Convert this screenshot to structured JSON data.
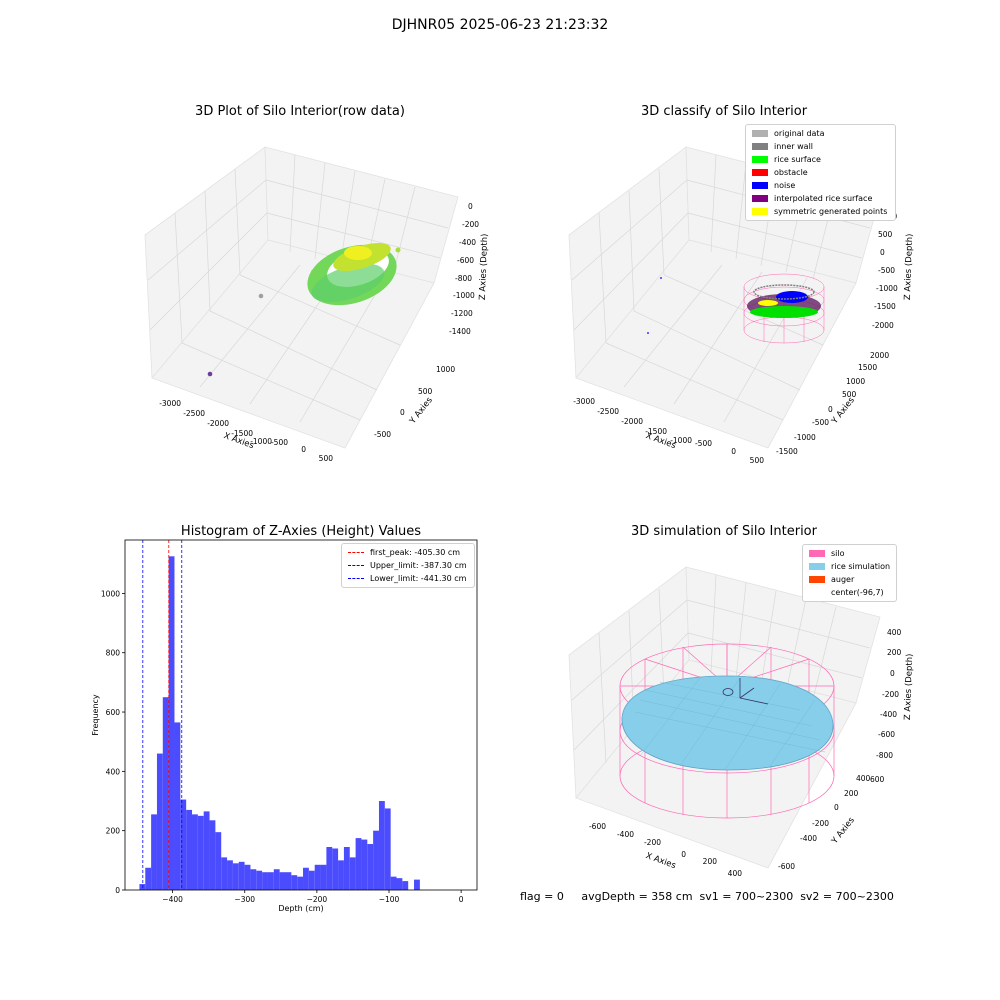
{
  "suptitle": "DJHNR05 2025-06-23 21:23:32",
  "bottom_text": "flag = 0     avgDepth = 358 cm  sv1 = 700~2300  sv2 = 700~2300",
  "colors": {
    "hist_bar": "#4c4cff",
    "first_peak": "#ff0000",
    "limits": "#0000ff",
    "silo_wire": "#ff69b4",
    "rice_sim": "#87ceeb"
  },
  "chart_data": [
    {
      "type": "scatter3d",
      "title": "3D Plot of Silo Interior(row data)",
      "xlabel": "X Axies",
      "ylabel": "Y Axies",
      "zlabel": "Z Axies (Depth)",
      "x_ticks": [
        "-3000",
        "-2500",
        "-2000",
        "-1500",
        "-1000",
        "-500",
        "0",
        "500"
      ],
      "y_ticks": [
        "-500",
        "0",
        "500",
        "1000"
      ],
      "z_ticks": [
        "0",
        "-200",
        "-400",
        "-600",
        "-800",
        "-1000",
        "-1200",
        "-1400"
      ]
    },
    {
      "type": "scatter3d",
      "title": "3D classify of Silo Interior",
      "xlabel": "X Axies",
      "ylabel": "Y Axies",
      "zlabel": "Z Axies (Depth)",
      "x_ticks": [
        "-3000",
        "-2500",
        "-2000",
        "-1500",
        "-1000",
        "-500",
        "0",
        "500"
      ],
      "y_ticks": [
        "-1500",
        "-1000",
        "-500",
        "0",
        "500",
        "1000",
        "1500",
        "2000"
      ],
      "z_ticks": [
        "1000",
        "500",
        "0",
        "-500",
        "-1000",
        "-1500",
        "-2000"
      ],
      "legend": [
        {
          "label": "original data",
          "color": "#b0b0b0"
        },
        {
          "label": "inner wall",
          "color": "#808080"
        },
        {
          "label": "rice surface",
          "color": "#00ff00"
        },
        {
          "label": "obstacle",
          "color": "#ff0000"
        },
        {
          "label": "noise",
          "color": "#0000ff"
        },
        {
          "label": "interpolated rice surface",
          "color": "#800080"
        },
        {
          "label": "symmetric generated points",
          "color": "#ffff00"
        }
      ]
    },
    {
      "type": "bar",
      "title": "Histogram of Z-Axies (Height) Values",
      "xlabel": "Depth (cm)",
      "ylabel": "Frequency",
      "xlim": [
        -466,
        22
      ],
      "ylim": [
        0,
        1180
      ],
      "x_ticks": [
        -400,
        -300,
        -200,
        -100,
        0
      ],
      "y_ticks": [
        0,
        200,
        400,
        600,
        800,
        1000
      ],
      "bin_start": -446,
      "bin_width": 8.1,
      "values": [
        20,
        75,
        255,
        460,
        650,
        1125,
        565,
        305,
        270,
        255,
        250,
        265,
        235,
        195,
        110,
        100,
        90,
        95,
        85,
        70,
        65,
        60,
        60,
        70,
        60,
        60,
        50,
        45,
        75,
        65,
        85,
        85,
        145,
        140,
        100,
        145,
        110,
        175,
        170,
        155,
        200,
        300,
        275,
        45,
        40,
        30,
        0,
        35
      ],
      "vlines": [
        {
          "x": -405.3,
          "label": "first_peak: -405.30 cm",
          "color": "#ff0000"
        },
        {
          "x": -387.3,
          "label": "Upper_limit: -387.30 cm",
          "color": "#0000ff"
        },
        {
          "x": -441.3,
          "label": "Lower_limit: -441.30 cm",
          "color": "#0000ff"
        }
      ]
    },
    {
      "type": "surface3d",
      "title": "3D simulation of Silo Interior",
      "xlabel": "X Axies",
      "ylabel": "Y Axies",
      "zlabel": "Z Axies (Depth)",
      "x_ticks": [
        "-600",
        "-400",
        "-200",
        "0",
        "200",
        "400"
      ],
      "y_ticks": [
        "-600",
        "-400",
        "-200",
        "0",
        "200",
        "400",
        "600"
      ],
      "z_ticks": [
        "400",
        "200",
        "0",
        "-200",
        "-400",
        "-600",
        "-800"
      ],
      "legend": [
        {
          "label": "silo",
          "color": "#ff69b4"
        },
        {
          "label": "rice simulation",
          "color": "#87ceeb"
        },
        {
          "label": "auger",
          "color": "#ff4500"
        },
        {
          "label": "center(-96,7)",
          "color": ""
        }
      ]
    }
  ]
}
